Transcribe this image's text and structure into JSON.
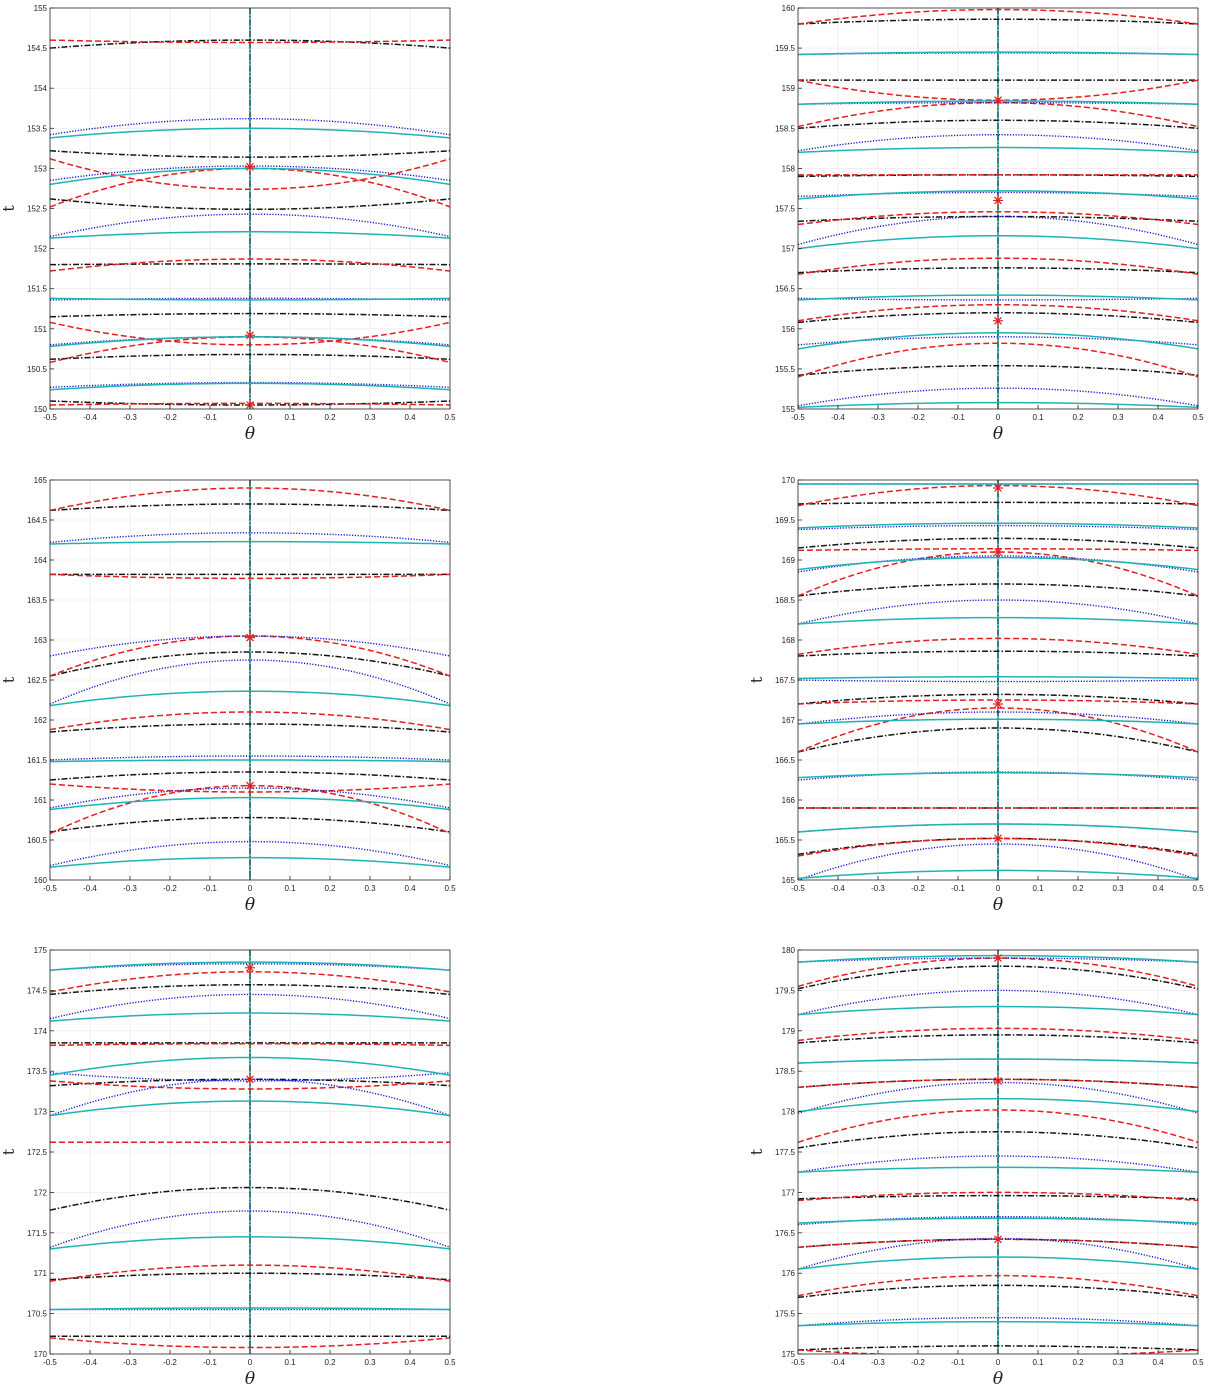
{
  "chart_data": [
    {
      "type": "line",
      "xlabel": "θ",
      "ylabel": "t",
      "xlim": [
        -0.5,
        0.5
      ],
      "ylim": [
        150,
        155
      ],
      "x_ticks": [
        "-0.5",
        "-0.4",
        "-0.3",
        "-0.2",
        "-0.1",
        "0",
        "0.1",
        "0.2",
        "0.3",
        "0.4",
        "0.5"
      ],
      "y_ticks": [
        "150",
        "150.5",
        "151",
        "151.5",
        "152",
        "152.5",
        "153",
        "153.5",
        "154",
        "154.5",
        "155"
      ],
      "grid": true,
      "series": [
        {
          "style": "black-dashdot",
          "t": [
            150.1,
            150.62,
            151.15,
            151.8,
            152.62,
            153.22,
            154.5
          ],
          "c": [
            -0.05,
            0.06,
            0.04,
            0.01,
            -0.13,
            -0.08,
            0.1
          ]
        },
        {
          "style": "red-dashed",
          "t": [
            150.05,
            150.58,
            151.08,
            151.72,
            152.52,
            153.12,
            154.6
          ],
          "c": [
            0.02,
            0.32,
            -0.28,
            0.15,
            0.48,
            -0.38,
            -0.03
          ]
        },
        {
          "style": "blue-dotted",
          "t": [
            150.27,
            150.8,
            151.36,
            152.15,
            152.85,
            153.42
          ],
          "c": [
            0.06,
            0.1,
            0.02,
            0.28,
            0.18,
            0.2
          ]
        },
        {
          "style": "cyan-solid",
          "t": [
            150.24,
            150.78,
            151.38,
            152.13,
            152.8,
            153.38
          ],
          "c": [
            0.08,
            0.12,
            -0.02,
            0.08,
            0.2,
            0.12
          ]
        }
      ],
      "markers": [
        {
          "x": 0,
          "t": 150.05
        },
        {
          "x": 0,
          "t": 150.92
        },
        {
          "x": 0,
          "t": 153.02
        }
      ]
    },
    {
      "type": "line",
      "xlabel": "θ",
      "ylabel": "",
      "xlim": [
        -0.5,
        0.5
      ],
      "ylim": [
        155,
        160
      ],
      "x_ticks": [
        "-0.5",
        "-0.4",
        "-0.3",
        "-0.2",
        "-0.1",
        "0",
        "0.1",
        "0.2",
        "0.3",
        "0.4",
        "0.5"
      ],
      "y_ticks": [
        "155",
        "155.5",
        "156",
        "156.5",
        "157",
        "157.5",
        "158",
        "158.5",
        "159",
        "159.5",
        "160"
      ],
      "grid": true,
      "series": [
        {
          "style": "black-dashdot",
          "t": [
            155.42,
            156.08,
            156.7,
            157.34,
            157.9,
            158.5,
            159.1,
            159.8
          ],
          "c": [
            0.12,
            0.12,
            0.06,
            0.06,
            0.02,
            0.1,
            0.0,
            0.06
          ]
        },
        {
          "style": "red-dashed",
          "t": [
            155.4,
            156.1,
            156.68,
            157.3,
            157.92,
            158.52,
            159.1,
            159.8
          ],
          "c": [
            0.42,
            0.2,
            0.2,
            0.16,
            0.0,
            0.3,
            -0.25,
            0.18
          ]
        },
        {
          "style": "blue-dotted",
          "t": [
            155.04,
            155.8,
            156.38,
            157.05,
            157.65,
            158.22,
            158.8,
            159.42
          ],
          "c": [
            0.22,
            0.1,
            -0.02,
            0.35,
            0.05,
            0.2,
            0.02,
            0.02
          ]
        },
        {
          "style": "cyan-solid",
          "t": [
            155.02,
            155.75,
            156.36,
            157.0,
            157.62,
            158.2,
            158.8,
            159.42
          ],
          "c": [
            0.06,
            0.2,
            0.06,
            0.16,
            0.1,
            0.06,
            0.04,
            0.03
          ]
        }
      ],
      "markers": [
        {
          "x": 0,
          "t": 156.1
        },
        {
          "x": 0,
          "t": 157.6
        },
        {
          "x": 0,
          "t": 158.85
        }
      ]
    },
    {
      "type": "line",
      "xlabel": "θ",
      "ylabel": "t",
      "xlim": [
        -0.5,
        0.5
      ],
      "ylim": [
        160,
        165
      ],
      "x_ticks": [
        "-0.5",
        "-0.4",
        "-0.3",
        "-0.2",
        "-0.1",
        "0",
        "0.1",
        "0.2",
        "0.3",
        "0.4",
        "0.5"
      ],
      "y_ticks": [
        "160",
        "160.5",
        "161",
        "161.5",
        "162",
        "162.5",
        "163",
        "163.5",
        "164",
        "164.5",
        "165"
      ],
      "grid": true,
      "series": [
        {
          "style": "black-dashdot",
          "t": [
            160.6,
            161.25,
            161.85,
            162.55,
            163.82,
            164.62
          ],
          "c": [
            0.18,
            0.1,
            0.1,
            0.3,
            0.0,
            0.08
          ]
        },
        {
          "style": "red-dashed",
          "t": [
            160.58,
            161.2,
            161.88,
            162.55,
            163.82,
            164.62
          ],
          "c": [
            0.6,
            -0.1,
            0.22,
            0.5,
            -0.05,
            0.28
          ]
        },
        {
          "style": "blue-dotted",
          "t": [
            160.18,
            160.9,
            161.5,
            162.2,
            162.8,
            164.22
          ],
          "c": [
            0.3,
            0.25,
            0.05,
            0.55,
            0.25,
            0.12
          ]
        },
        {
          "style": "cyan-solid",
          "t": [
            160.16,
            160.88,
            161.48,
            162.18,
            164.2
          ],
          "c": [
            0.12,
            0.15,
            0.02,
            0.18,
            0.03
          ]
        }
      ],
      "markers": [
        {
          "x": 0,
          "t": 161.18
        },
        {
          "x": 0,
          "t": 163.03
        }
      ]
    },
    {
      "type": "line",
      "xlabel": "θ",
      "ylabel": "t",
      "xlim": [
        -0.5,
        0.5
      ],
      "ylim": [
        165,
        170
      ],
      "x_ticks": [
        "-0.5",
        "-0.4",
        "-0.3",
        "-0.2",
        "-0.1",
        "0",
        "0.1",
        "0.2",
        "0.3",
        "0.4",
        "0.5"
      ],
      "y_ticks": [
        "165",
        "165.5",
        "166",
        "166.5",
        "167",
        "167.5",
        "168",
        "168.5",
        "169",
        "169.5",
        "170"
      ],
      "grid": true,
      "series": [
        {
          "style": "black-dashdot",
          "t": [
            165.32,
            165.9,
            166.6,
            167.2,
            167.8,
            168.55,
            169.15,
            169.7
          ],
          "c": [
            0.2,
            0.0,
            0.3,
            0.12,
            0.06,
            0.15,
            0.12,
            0.02
          ]
        },
        {
          "style": "red-dashed",
          "t": [
            165.3,
            165.9,
            166.6,
            167.2,
            167.82,
            168.55,
            169.12,
            169.68
          ],
          "c": [
            0.22,
            0.0,
            0.55,
            0.05,
            0.2,
            0.55,
            0.02,
            0.25
          ]
        },
        {
          "style": "blue-dotted",
          "t": [
            165.0,
            165.6,
            166.25,
            166.95,
            167.5,
            168.2,
            168.85,
            169.38,
            169.95
          ],
          "c": [
            0.45,
            0.1,
            0.1,
            0.15,
            -0.02,
            0.3,
            0.2,
            0.05,
            0.0
          ]
        },
        {
          "style": "cyan-solid",
          "t": [
            165.02,
            165.6,
            166.28,
            166.95,
            167.52,
            168.2,
            168.88,
            169.4,
            169.95
          ],
          "c": [
            0.1,
            0.1,
            0.06,
            0.06,
            0.02,
            0.08,
            0.15,
            0.06,
            0.0
          ]
        }
      ],
      "markers": [
        {
          "x": 0,
          "t": 165.52
        },
        {
          "x": 0,
          "t": 167.2
        },
        {
          "x": 0,
          "t": 169.1
        },
        {
          "x": 0,
          "t": 169.9
        }
      ]
    },
    {
      "type": "line",
      "xlabel": "θ",
      "ylabel": "t",
      "xlim": [
        -0.5,
        0.5
      ],
      "ylim": [
        170,
        175
      ],
      "x_ticks": [
        "-0.5",
        "-0.4",
        "-0.3",
        "-0.2",
        "-0.1",
        "0",
        "0.1",
        "0.2",
        "0.3",
        "0.4",
        "0.5"
      ],
      "y_ticks": [
        "170",
        "170.5",
        "171",
        "171.5",
        "172",
        "172.5",
        "173",
        "173.5",
        "174",
        "174.5",
        "175"
      ],
      "grid": true,
      "series": [
        {
          "style": "black-dashdot",
          "t": [
            170.22,
            170.92,
            171.78,
            173.32,
            173.85,
            174.45
          ],
          "c": [
            0.0,
            0.08,
            0.28,
            0.08,
            0.0,
            0.12
          ]
        },
        {
          "style": "red-dashed",
          "t": [
            170.2,
            170.9,
            172.62,
            173.38,
            173.82,
            174.48
          ],
          "c": [
            -0.12,
            0.2,
            0.0,
            -0.1,
            0.02,
            0.25
          ]
        },
        {
          "style": "blue-dotted",
          "t": [
            170.55,
            171.32,
            172.95,
            173.48,
            174.15,
            174.75
          ],
          "c": [
            0.0,
            0.45,
            0.45,
            -0.1,
            0.3,
            0.08
          ]
        },
        {
          "style": "cyan-solid",
          "t": [
            170.55,
            171.3,
            172.95,
            173.45,
            174.12,
            174.75
          ],
          "c": [
            0.02,
            0.15,
            0.18,
            0.22,
            0.1,
            0.1
          ]
        }
      ],
      "markers": [
        {
          "x": 0,
          "t": 173.4
        },
        {
          "x": 0,
          "t": 174.78
        }
      ]
    },
    {
      "type": "line",
      "xlabel": "θ",
      "ylabel": "t",
      "xlim": [
        -0.5,
        0.5
      ],
      "ylim": [
        175,
        180
      ],
      "x_ticks": [
        "-0.5",
        "-0.4",
        "-0.3",
        "-0.2",
        "-0.1",
        "0",
        "0.1",
        "0.2",
        "0.3",
        "0.4",
        "0.5"
      ],
      "y_ticks": [
        "175",
        "175.5",
        "176",
        "176.5",
        "177",
        "177.5",
        "178",
        "178.5",
        "179",
        "179.5",
        "180"
      ],
      "grid": true,
      "series": [
        {
          "style": "black-dashdot",
          "t": [
            175.05,
            175.7,
            176.32,
            176.92,
            177.55,
            178.3,
            178.85,
            179.52
          ],
          "c": [
            0.05,
            0.15,
            0.1,
            0.04,
            0.2,
            0.1,
            0.1,
            0.28
          ]
        },
        {
          "style": "red-dashed",
          "t": [
            175.05,
            175.72,
            176.32,
            176.9,
            177.62,
            178.3,
            178.88,
            179.55
          ],
          "c": [
            -0.08,
            0.25,
            0.1,
            0.1,
            0.4,
            0.1,
            0.15,
            0.35
          ]
        },
        {
          "style": "blue-dotted",
          "t": [
            175.35,
            176.05,
            176.6,
            177.25,
            177.98,
            178.6,
            179.2,
            179.85
          ],
          "c": [
            0.1,
            0.38,
            0.1,
            0.2,
            0.38,
            0.05,
            0.3,
            0.05
          ]
        },
        {
          "style": "cyan-solid",
          "t": [
            175.35,
            176.05,
            176.62,
            177.25,
            178.0,
            178.6,
            179.2,
            179.85
          ],
          "c": [
            0.05,
            0.15,
            0.06,
            0.06,
            0.16,
            0.05,
            0.1,
            0.08
          ]
        }
      ],
      "markers": [
        {
          "x": 0,
          "t": 176.42
        },
        {
          "x": 0,
          "t": 178.38
        },
        {
          "x": 0,
          "t": 179.9
        }
      ]
    }
  ],
  "colors": {
    "cyan": "#1eb4b4",
    "blue": "#1414d2",
    "red": "#e61e1e",
    "black": "#141414",
    "grid": "#e8e8e8"
  }
}
